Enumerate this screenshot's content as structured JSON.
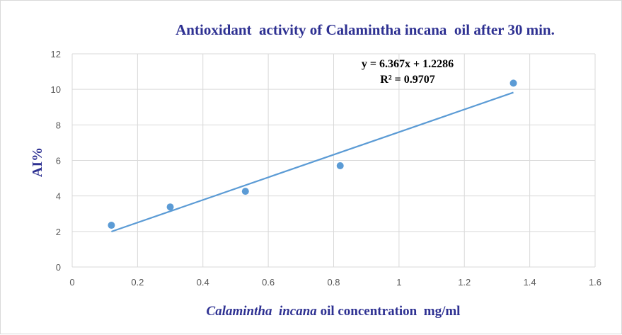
{
  "chart_data": {
    "type": "scatter",
    "title": "Antioxidant  activity of Calamintha incana  oil after 30 min.",
    "xlabel_italic": "Calamintha  incana",
    "xlabel_rest": " oil concentration  mg/ml",
    "ylabel": "AI%",
    "xlim": [
      0,
      1.6
    ],
    "ylim": [
      0,
      12
    ],
    "xticks": [
      "0",
      "0.2",
      "0.4",
      "0.6",
      "0.8",
      "1",
      "1.2",
      "1.4",
      "1.6"
    ],
    "yticks": [
      "0",
      "2",
      "4",
      "6",
      "8",
      "10",
      "12"
    ],
    "grid": true,
    "points": [
      {
        "x": 0.12,
        "y": 2.35
      },
      {
        "x": 0.3,
        "y": 3.38
      },
      {
        "x": 0.53,
        "y": 4.26
      },
      {
        "x": 0.82,
        "y": 5.7
      },
      {
        "x": 1.35,
        "y": 10.35
      }
    ],
    "trendline": {
      "slope": 6.367,
      "intercept": 1.2286,
      "x_range": [
        0.12,
        1.35
      ]
    },
    "equation": "y = 6.367x + 1.2286",
    "r_squared": "R² = 0.9707",
    "colors": {
      "point": "#5B9BD5",
      "line": "#5B9BD5",
      "title": "#2E3192"
    }
  }
}
